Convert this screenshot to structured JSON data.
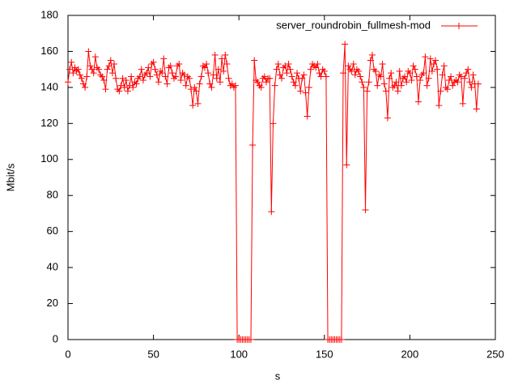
{
  "chart_data": {
    "type": "line",
    "xlabel": "s",
    "ylabel": "Mbit/s",
    "x": [
      0,
      1,
      2,
      3,
      4,
      5,
      6,
      7,
      8,
      9,
      10,
      11,
      12,
      13,
      14,
      15,
      16,
      17,
      18,
      19,
      20,
      21,
      22,
      23,
      24,
      25,
      26,
      27,
      28,
      29,
      30,
      31,
      32,
      33,
      34,
      35,
      36,
      37,
      38,
      39,
      40,
      41,
      42,
      43,
      44,
      45,
      46,
      47,
      48,
      49,
      50,
      51,
      52,
      53,
      54,
      55,
      56,
      57,
      58,
      59,
      60,
      61,
      62,
      63,
      64,
      65,
      66,
      67,
      68,
      69,
      70,
      71,
      72,
      73,
      74,
      75,
      76,
      77,
      78,
      79,
      80,
      81,
      82,
      83,
      84,
      85,
      86,
      87,
      88,
      89,
      90,
      91,
      92,
      93,
      94,
      95,
      96,
      97,
      98,
      99,
      100,
      101,
      102,
      103,
      104,
      105,
      106,
      107,
      108,
      109,
      110,
      111,
      112,
      113,
      114,
      115,
      116,
      117,
      118,
      119,
      120,
      121,
      122,
      123,
      124,
      125,
      126,
      127,
      128,
      129,
      130,
      131,
      132,
      133,
      134,
      135,
      136,
      137,
      138,
      139,
      140,
      141,
      142,
      143,
      144,
      145,
      146,
      147,
      148,
      149,
      150,
      151,
      152,
      153,
      154,
      155,
      156,
      157,
      158,
      159,
      160,
      161,
      162,
      163,
      164,
      165,
      166,
      167,
      168,
      169,
      170,
      171,
      172,
      173,
      174,
      175,
      176,
      177,
      178,
      179,
      180,
      181,
      182,
      183,
      184,
      185,
      186,
      187,
      188,
      189,
      190,
      191,
      192,
      193,
      194,
      195,
      196,
      197,
      198,
      199,
      200,
      201,
      202,
      203,
      204,
      205,
      206,
      207,
      208,
      209,
      210,
      211,
      212,
      213,
      214,
      215,
      216,
      217,
      218,
      219,
      220,
      221,
      222,
      223,
      224,
      225,
      226,
      227,
      228,
      229,
      230,
      231,
      232,
      233,
      234,
      235,
      236,
      237,
      238,
      239,
      240
    ],
    "series": [
      {
        "name": "server_roundrobin_fullmesh-mod",
        "color": "#ff0000",
        "values": [
          143,
          150,
          154,
          148,
          151,
          149,
          150,
          147,
          145,
          142,
          140,
          146,
          160,
          152,
          150,
          148,
          157,
          151,
          150,
          147,
          146,
          144,
          139,
          150,
          152,
          155,
          148,
          153,
          145,
          139,
          138,
          141,
          145,
          140,
          144,
          138,
          141,
          146,
          140,
          143,
          142,
          145,
          146,
          150,
          144,
          147,
          148,
          151,
          146,
          153,
          154,
          150,
          147,
          143,
          149,
          148,
          156,
          146,
          142,
          151,
          152,
          148,
          145,
          146,
          152,
          153,
          144,
          148,
          147,
          141,
          146,
          145,
          139,
          130,
          140,
          138,
          131,
          142,
          146,
          152,
          151,
          153,
          148,
          142,
          140,
          147,
          158,
          145,
          150,
          143,
          156,
          149,
          158,
          153,
          145,
          141,
          142,
          140,
          141,
          0,
          0,
          0,
          0,
          0,
          0,
          0,
          0,
          0,
          108,
          155,
          144,
          143,
          141,
          140,
          145,
          146,
          143,
          145,
          145,
          71,
          120,
          141,
          150,
          153,
          147,
          145,
          151,
          152,
          148,
          153,
          150,
          146,
          143,
          141,
          148,
          145,
          138,
          145,
          147,
          137,
          124,
          140,
          150,
          153,
          152,
          151,
          153,
          148,
          146,
          150,
          149,
          146,
          0,
          0,
          0,
          0,
          0,
          0,
          0,
          0,
          0,
          148,
          164,
          97,
          152,
          150,
          149,
          153,
          147,
          150,
          149,
          146,
          143,
          140,
          72,
          138,
          143,
          155,
          158,
          150,
          149,
          141,
          147,
          146,
          153,
          142,
          138,
          123,
          145,
          148,
          140,
          141,
          143,
          138,
          149,
          141,
          145,
          146,
          143,
          149,
          148,
          144,
          152,
          150,
          146,
          132,
          144,
          147,
          148,
          157,
          141,
          145,
          156,
          149,
          153,
          155,
          150,
          130,
          138,
          147,
          152,
          140,
          139,
          144,
          146,
          141,
          143,
          144,
          143,
          147,
          146,
          131,
          145,
          148,
          150,
          143,
          140,
          147,
          142,
          128,
          142
        ]
      }
    ],
    "xlim": [
      0,
      250
    ],
    "xticks": [
      0,
      50,
      100,
      150,
      200,
      250
    ],
    "ylim": [
      0,
      180
    ],
    "yticks": [
      0,
      20,
      40,
      60,
      80,
      100,
      120,
      140,
      160,
      180
    ],
    "legend": "top-right",
    "grid": false
  }
}
